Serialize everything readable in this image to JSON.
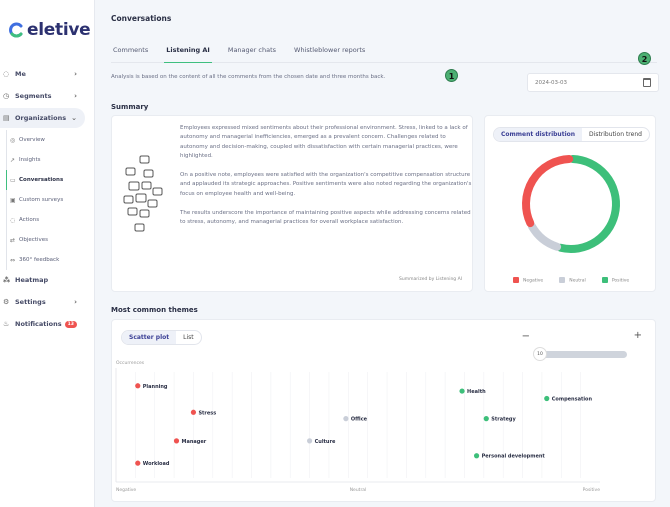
{
  "brand": {
    "logo": "eletive"
  },
  "sidebar": {
    "items": [
      {
        "label": "Me",
        "icon": "user-icon",
        "chevron": "›"
      },
      {
        "label": "Segments",
        "icon": "segments-icon",
        "chevron": "›"
      },
      {
        "label": "Organizations",
        "icon": "organization-icon",
        "chevron": "⌄"
      }
    ],
    "sub": [
      {
        "label": "Overview",
        "icon": "overview-icon"
      },
      {
        "label": "Insights",
        "icon": "insights-icon"
      },
      {
        "label": "Conversations",
        "icon": "conversations-icon"
      },
      {
        "label": "Custom surveys",
        "icon": "survey-icon"
      },
      {
        "label": "Actions",
        "icon": "actions-icon"
      },
      {
        "label": "Objectives",
        "icon": "objectives-icon"
      },
      {
        "label": "360° feedback",
        "icon": "feedback-icon"
      }
    ],
    "bottom": [
      {
        "label": "Heatmap",
        "icon": "heatmap-icon"
      },
      {
        "label": "Settings",
        "icon": "gear-icon",
        "chevron": "›"
      },
      {
        "label": "Notifications",
        "icon": "bell-icon",
        "badge": "13"
      }
    ]
  },
  "page": {
    "title": "Conversations",
    "tabs": [
      "Comments",
      "Listening AI",
      "Manager chats",
      "Whistleblower reports"
    ],
    "active_tab": "Listening AI",
    "description": "Analysis is based on the content of all the comments from the chosen date and three months back.",
    "date": "2024-03-03",
    "markers": [
      "1",
      "2"
    ]
  },
  "summary": {
    "heading": "Summary",
    "paragraphs": [
      "Employees expressed mixed sentiments about their professional environment. Stress, linked to a lack of autonomy and managerial inefficiencies, emerged as a prevalent concern. Challenges related to autonomy and decision-making, coupled with dissatisfaction with certain managerial practices, were highlighted.",
      "On a positive note, employees were satisfied with the organization's competitive compensation structure and applauded its strategic approaches. Positive sentiments were also noted regarding the organization's focus on employee health and well-being.",
      "The results underscore the importance of maintaining positive aspects while addressing concerns related to stress, autonomy, and managerial practices for overall workplace satisfaction."
    ],
    "footer": "Summarized by Listening AI"
  },
  "distribution": {
    "tabs": [
      "Comment distribution",
      "Distribution trend"
    ],
    "legend": [
      "Negative",
      "Neutral",
      "Positive"
    ]
  },
  "themes": {
    "heading": "Most common themes",
    "views": [
      "Scatter plot",
      "List"
    ],
    "slider_value": "10",
    "minus": "−",
    "plus": "+"
  },
  "chart_data": [
    {
      "type": "pie",
      "variant": "donut",
      "categories": [
        "Negative",
        "Neutral",
        "Positive"
      ],
      "values": [
        0.3,
        0.12,
        0.5
      ],
      "colors": [
        "#ef5350",
        "#c9ced8",
        "#3dbf7a"
      ]
    },
    {
      "type": "scatter",
      "ylabel": "Occurrences",
      "xticks": [
        "Negative",
        "Neutral",
        "Positive"
      ],
      "xlim": [
        -1,
        1
      ],
      "ylim": [
        0,
        100
      ],
      "grid": true,
      "points": [
        {
          "label": "Planning",
          "x": -0.91,
          "y": 87,
          "sentiment": "negative"
        },
        {
          "label": "Stress",
          "x": -0.68,
          "y": 62,
          "sentiment": "negative"
        },
        {
          "label": "Manager",
          "x": -0.75,
          "y": 35,
          "sentiment": "negative"
        },
        {
          "label": "Workload",
          "x": -0.91,
          "y": 14,
          "sentiment": "negative"
        },
        {
          "label": "Culture",
          "x": -0.2,
          "y": 35,
          "sentiment": "neutral"
        },
        {
          "label": "Office",
          "x": -0.05,
          "y": 56,
          "sentiment": "neutral"
        },
        {
          "label": "Health",
          "x": 0.43,
          "y": 82,
          "sentiment": "positive"
        },
        {
          "label": "Strategy",
          "x": 0.53,
          "y": 56,
          "sentiment": "positive"
        },
        {
          "label": "Personal development",
          "x": 0.49,
          "y": 21,
          "sentiment": "positive"
        },
        {
          "label": "Compensation",
          "x": 0.78,
          "y": 75,
          "sentiment": "positive"
        }
      ]
    }
  ]
}
